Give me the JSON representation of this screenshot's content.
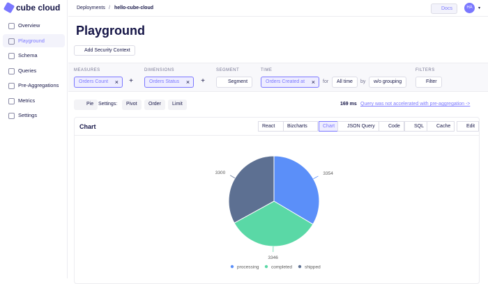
{
  "logo": "cube cloud",
  "nav": [
    "Overview",
    "Playground",
    "Schema",
    "Queries",
    "Pre-Aggregations",
    "Metrics",
    "Settings"
  ],
  "breadcrumb": [
    "Deployments",
    "hello-cube-cloud"
  ],
  "breadcrumb_separator": "/",
  "docs": "Docs",
  "avatar": "HA",
  "title": "Playground",
  "security_button": "Add Security Context",
  "query": {
    "measures": {
      "label": "MEASURES",
      "items": [
        "Orders Count"
      ]
    },
    "dimensions": {
      "label": "DIMENSIONS",
      "items": [
        "Orders Status"
      ]
    },
    "segment": {
      "label": "SEGMENT",
      "button": "Segment"
    },
    "time": {
      "label": "TIME",
      "item": "Orders Created at",
      "for": "for",
      "range": "All time",
      "by": "by",
      "granularity": "w/o grouping"
    },
    "filters": {
      "label": "FILTERS",
      "button": "Filter"
    }
  },
  "settings": {
    "chart_type": "Pie",
    "label": "Settings:",
    "buttons": [
      "Pivot",
      "Order",
      "Limit"
    ],
    "timing": "169 ms",
    "notice": "Query was not accelerated with pre-aggregation ->"
  },
  "card": {
    "title": "Chart",
    "selects": [
      "React",
      "Bizcharts"
    ],
    "tabs": [
      "Chart",
      "JSON Query",
      "Code",
      "SQL",
      "Cache"
    ],
    "edit": "Edit"
  },
  "chart_data": {
    "type": "pie",
    "categories": [
      "processing",
      "completed",
      "shipped"
    ],
    "values": [
      3354,
      3346,
      3300
    ],
    "colors": [
      "#5b8ff9",
      "#5ad8a6",
      "#5d7092"
    ]
  }
}
